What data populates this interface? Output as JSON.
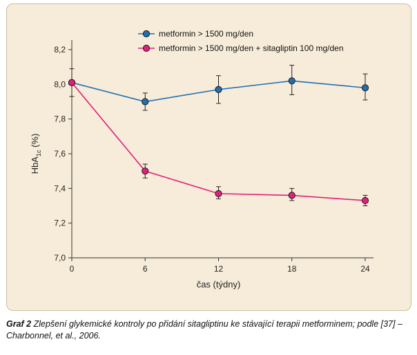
{
  "chart_data": {
    "type": "line",
    "xlabel": "čas (týdny)",
    "ylabel_main": "HbA",
    "ylabel_sub": "1c",
    "ylabel_suffix": " (%)",
    "x": [
      0,
      6,
      12,
      18,
      24
    ],
    "x_ticks": [
      "0",
      "6",
      "12",
      "18",
      "24"
    ],
    "xlim": [
      0,
      24
    ],
    "ylim": [
      7.0,
      8.2
    ],
    "y_ticks": [
      "7,0",
      "7,2",
      "7,4",
      "7,6",
      "7,8",
      "8,0",
      "8,2"
    ],
    "legend_position": "top-center",
    "grid": false,
    "series": [
      {
        "name": "metformin > 1500 mg/den",
        "color": "#1f6fb3",
        "marker_color": "#1f6fb3",
        "values": [
          8.01,
          7.9,
          7.97,
          8.02,
          7.98
        ],
        "err_low": [
          0.08,
          0.05,
          0.08,
          0.08,
          0.07
        ],
        "err_high": [
          0.08,
          0.05,
          0.08,
          0.09,
          0.08
        ]
      },
      {
        "name": "metformin > 1500 mg/den + sitagliptin 100 mg/den",
        "color": "#e0207a",
        "marker_color": "#e0207a",
        "values": [
          8.01,
          7.5,
          7.37,
          7.36,
          7.33
        ],
        "err_low": [
          0.0,
          0.04,
          0.03,
          0.03,
          0.03
        ],
        "err_high": [
          0.0,
          0.04,
          0.04,
          0.04,
          0.03
        ]
      }
    ]
  },
  "caption": {
    "label": "Graf 2",
    "text": "  Zlepšení glykemické kontroly po přidání sitagliptinu ke stávající terapii metforminem; podle [37] – Charbonnel, et al., 2006."
  }
}
